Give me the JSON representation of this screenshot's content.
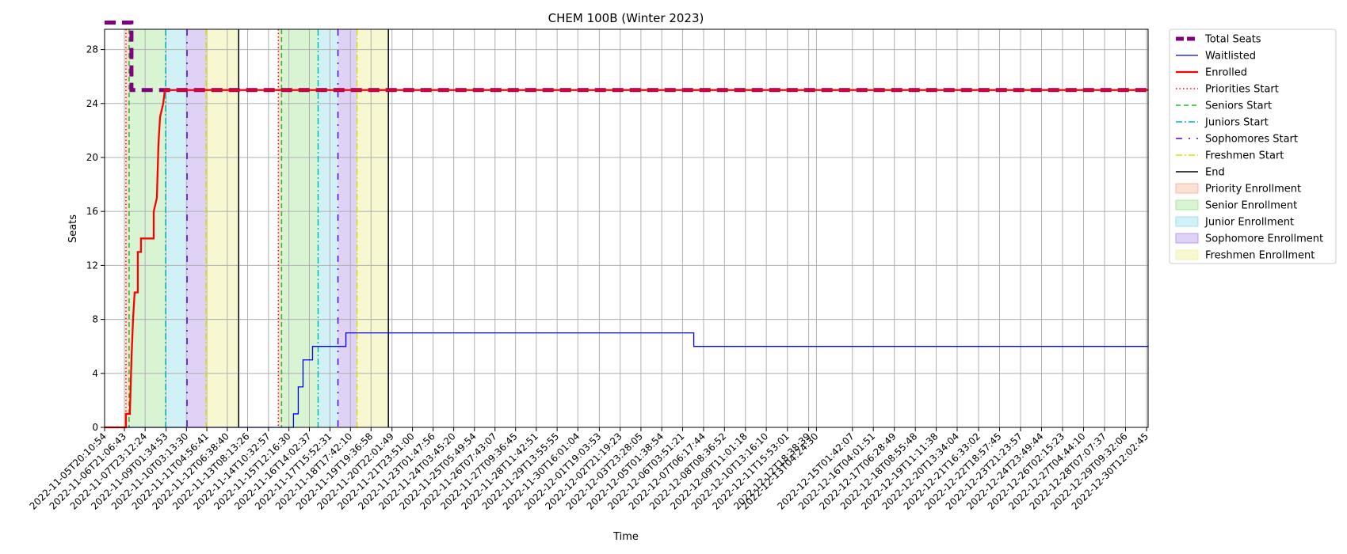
{
  "chart_data": {
    "type": "line",
    "title": "CHEM 100B (Winter 2023)",
    "xlabel": "Time",
    "ylabel": "Seats",
    "x_range": [
      "2022-11-05T20:10:54",
      "2022-12-30T14:00:00"
    ],
    "ylim": [
      0,
      29.5
    ],
    "yticks": [
      0,
      4,
      8,
      12,
      16,
      20,
      24,
      28
    ],
    "grid": true,
    "legend_position": "outside-right",
    "xtick_labels": [
      "2022-11-05T20:10:54",
      "2022-11-06T21:06:43",
      "2022-11-07T23:12:24",
      "2022-11-09T01:34:53",
      "2022-11-10T03:13:30",
      "2022-11-11T04:56:41",
      "2022-11-12T06:38:40",
      "2022-11-13T08:13:26",
      "2022-11-14T10:32:57",
      "2022-11-15T12:16:30",
      "2022-11-16T14:02:37",
      "2022-11-17T15:52:31",
      "2022-11-18T17:42:10",
      "2022-11-19T19:36:58",
      "2022-11-20T22:01:49",
      "2022-11-21T23:51:00",
      "2022-11-23T01:47:56",
      "2022-11-24T03:45:20",
      "2022-11-25T05:49:54",
      "2022-11-26T07:43:07",
      "2022-11-27T09:36:45",
      "2022-11-28T11:42:51",
      "2022-11-29T13:55:55",
      "2022-11-30T16:01:04",
      "2022-12-01T19:03:53",
      "2022-12-02T21:19:23",
      "2022-12-03T23:28:05",
      "2022-12-05T01:38:54",
      "2022-12-06T03:51:21",
      "2022-12-07T06:17:44",
      "2022-12-08T08:36:52",
      "2022-12-09T11:01:18",
      "2022-12-10T13:16:10",
      "2022-12-11T15:53:01",
      "2022-12-12T18:38:39",
      "2022-12-13T04:24:30",
      "2022-12-15T01:42:07",
      "2022-12-16T04:01:51",
      "2022-12-17T06:28:49",
      "2022-12-18T08:55:48",
      "2022-12-19T11:11:38",
      "2022-12-20T13:34:04",
      "2022-12-21T16:33:02",
      "2022-12-22T18:57:45",
      "2022-12-23T21:23:57",
      "2022-12-24T23:49:44",
      "2022-12-26T02:15:23",
      "2022-12-27T04:44:10",
      "2022-12-28T07:07:37",
      "2022-12-29T09:32:06",
      "2022-12-30T12:02:45"
    ],
    "series": [
      {
        "name": "Total Seats",
        "color": "#800080",
        "style": "dashed-thick",
        "points": [
          [
            "2022-11-05T20:10:54",
            30
          ],
          [
            "2022-11-07T06:00:00",
            30
          ],
          [
            "2022-11-07T06:00:00",
            25
          ],
          [
            "2022-12-30T14:00:00",
            25
          ]
        ]
      },
      {
        "name": "Waitlisted",
        "color": "#0000ff",
        "style": "solid-thin",
        "points": [
          [
            "2022-11-05T20:10:54",
            0
          ],
          [
            "2022-11-15T18:00:00",
            0
          ],
          [
            "2022-11-15T18:00:00",
            1
          ],
          [
            "2022-11-16T00:00:00",
            1
          ],
          [
            "2022-11-16T00:00:00",
            3
          ],
          [
            "2022-11-16T06:00:00",
            3
          ],
          [
            "2022-11-16T06:00:00",
            5
          ],
          [
            "2022-11-16T18:00:00",
            5
          ],
          [
            "2022-11-16T18:00:00",
            6
          ],
          [
            "2022-11-18T12:00:00",
            6
          ],
          [
            "2022-11-18T12:00:00",
            7
          ],
          [
            "2022-12-06T18:00:00",
            7
          ],
          [
            "2022-12-06T18:00:00",
            6
          ],
          [
            "2022-12-30T14:00:00",
            6
          ]
        ]
      },
      {
        "name": "Enrolled",
        "color": "#ff0000",
        "style": "solid-thick",
        "points": [
          [
            "2022-11-05T20:10:54",
            0
          ],
          [
            "2022-11-06T23:00:00",
            0
          ],
          [
            "2022-11-06T23:00:00",
            1
          ],
          [
            "2022-11-07T04:00:00",
            1
          ],
          [
            "2022-11-07T06:00:00",
            5
          ],
          [
            "2022-11-07T08:00:00",
            8
          ],
          [
            "2022-11-07T10:00:00",
            10
          ],
          [
            "2022-11-07T14:00:00",
            10
          ],
          [
            "2022-11-07T14:00:00",
            13
          ],
          [
            "2022-11-07T18:00:00",
            13
          ],
          [
            "2022-11-07T18:00:00",
            14
          ],
          [
            "2022-11-08T10:00:00",
            14
          ],
          [
            "2022-11-08T10:00:00",
            16
          ],
          [
            "2022-11-08T14:00:00",
            17
          ],
          [
            "2022-11-08T16:00:00",
            21
          ],
          [
            "2022-11-08T18:00:00",
            23
          ],
          [
            "2022-11-08T22:00:00",
            24
          ],
          [
            "2022-11-09T00:00:00",
            25
          ],
          [
            "2022-12-30T14:00:00",
            25
          ]
        ]
      }
    ],
    "vertical_markers": [
      {
        "name": "Priorities Start",
        "color": "#ff0000",
        "style": "dotted",
        "x": [
          "2022-11-06T23:00:00",
          "2022-11-14T23:00:00"
        ]
      },
      {
        "name": "Seniors Start",
        "color": "#22bb22",
        "style": "dashed",
        "x": [
          "2022-11-07T03:00:00",
          "2022-11-15T03:00:00"
        ]
      },
      {
        "name": "Juniors Start",
        "color": "#00bbbb",
        "style": "dashdot",
        "x": [
          "2022-11-09T01:00:00",
          "2022-11-17T01:00:00"
        ]
      },
      {
        "name": "Sophomores Start",
        "color": "#5500dd",
        "style": "loosedashdot",
        "x": [
          "2022-11-10T04:00:00",
          "2022-11-18T02:00:00"
        ]
      },
      {
        "name": "Freshmen Start",
        "color": "#dddd00",
        "style": "dashdot",
        "x": [
          "2022-11-11T04:00:00",
          "2022-11-19T02:00:00"
        ]
      },
      {
        "name": "End",
        "color": "#000000",
        "style": "solid",
        "x": [
          "2022-11-12T21:00:00",
          "2022-11-20T17:30:00"
        ]
      }
    ],
    "shaded_periods": [
      {
        "name": "Priority Enrollment",
        "color": "#f4a582",
        "opacity": 0.35,
        "spans": [
          [
            "2022-11-06T23:00:00",
            "2022-11-07T03:00:00"
          ],
          [
            "2022-11-14T23:00:00",
            "2022-11-15T03:00:00"
          ]
        ]
      },
      {
        "name": "Senior Enrollment",
        "color": "#8ee07f",
        "opacity": 0.35,
        "spans": [
          [
            "2022-11-07T03:00:00",
            "2022-11-09T01:00:00"
          ],
          [
            "2022-11-15T03:00:00",
            "2022-11-17T01:00:00"
          ]
        ]
      },
      {
        "name": "Junior Enrollment",
        "color": "#7fd8e8",
        "opacity": 0.35,
        "spans": [
          [
            "2022-11-09T01:00:00",
            "2022-11-10T04:00:00"
          ],
          [
            "2022-11-17T01:00:00",
            "2022-11-18T02:00:00"
          ]
        ]
      },
      {
        "name": "Sophomore Enrollment",
        "color": "#a77ee6",
        "opacity": 0.35,
        "spans": [
          [
            "2022-11-10T04:00:00",
            "2022-11-11T04:00:00"
          ],
          [
            "2022-11-18T02:00:00",
            "2022-11-19T02:00:00"
          ]
        ]
      },
      {
        "name": "Freshmen Enrollment",
        "color": "#eeee99",
        "opacity": 0.45,
        "spans": [
          [
            "2022-11-11T04:00:00",
            "2022-11-12T21:00:00"
          ],
          [
            "2022-11-19T02:00:00",
            "2022-11-20T17:30:00"
          ]
        ]
      }
    ]
  }
}
